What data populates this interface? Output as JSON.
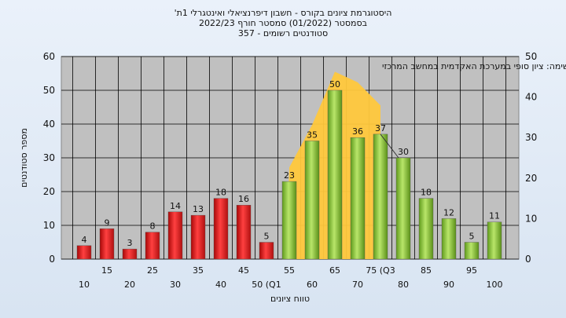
{
  "chart_data": {
    "type": "bar",
    "title_lines": [
      "היסטוגרמת ציונים בקורס - חשבון דיפרנציאלי ואינטגרלי 1ת'",
      "בסמסטר  (01/2022)  סמסטר חורף 2022/23",
      "סטודנטים רשומים - 357"
    ],
    "annotation": "במשימה: ציון סופי במערכת האקדמית במחשב המרכזי",
    "ylabel": "מספר סטודנטים",
    "xlabel": "טווח ציונים",
    "ylim": [
      0,
      60
    ],
    "y2lim": [
      0,
      50
    ],
    "yticks": [
      0,
      10,
      20,
      30,
      40,
      50,
      60
    ],
    "y2ticks": [
      0,
      10,
      20,
      30,
      40,
      50
    ],
    "categories": [
      "10",
      "15",
      "20",
      "25",
      "30",
      "35",
      "40",
      "45",
      "50 (Q1",
      "55",
      "60",
      "65",
      "70",
      "75 (Q3",
      "80",
      "85",
      "90",
      "95",
      "100"
    ],
    "values": [
      4,
      9,
      3,
      8,
      14,
      13,
      18,
      16,
      5,
      23,
      35,
      50,
      36,
      37,
      30,
      18,
      12,
      5,
      11
    ],
    "fail_count": 9,
    "colors": {
      "fail": "#e02020",
      "pass": "#8cc43c",
      "area": "#ffc83c",
      "plot_bg": "#c0c0c0",
      "line": "#333333"
    },
    "grid": true
  }
}
